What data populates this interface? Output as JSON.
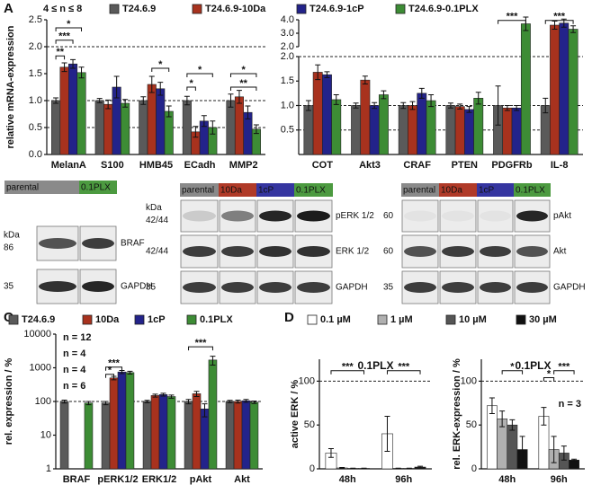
{
  "panel_labels": [
    "A",
    "B",
    "C",
    "D"
  ],
  "chart_data": [
    {
      "type": "bar",
      "subtitle": "4 ≤ n ≤ 8",
      "y_label": "relative mRNA-expression",
      "categories": [
        "MelanA",
        "S100",
        "HMB45",
        "ECadh",
        "MMP2"
      ],
      "series": [
        {
          "name": "T24.6.9",
          "color": "#5a5a5a",
          "values": [
            1.0,
            1.0,
            1.0,
            1.0,
            1.0
          ],
          "errors": [
            0.05,
            0.04,
            0.07,
            0.08,
            0.12
          ]
        },
        {
          "name": "T24.6.9-10Da",
          "color": "#a8321e",
          "values": [
            1.62,
            0.93,
            1.3,
            0.42,
            1.07
          ],
          "errors": [
            0.08,
            0.08,
            0.15,
            0.1,
            0.12
          ]
        },
        {
          "name": "T24.6.9-1cP",
          "color": "#23238a",
          "values": [
            1.68,
            1.25,
            1.22,
            0.62,
            0.78
          ],
          "errors": [
            0.08,
            0.2,
            0.12,
            0.1,
            0.12
          ]
        },
        {
          "name": "T24.6.9-0.1PLX",
          "color": "#3d8c35",
          "values": [
            1.52,
            0.95,
            0.8,
            0.5,
            0.47
          ],
          "errors": [
            0.1,
            0.07,
            0.1,
            0.12,
            0.08
          ]
        }
      ],
      "ylim": [
        0,
        2.5
      ],
      "yticks": [
        {
          "value": 0,
          "label": "0.0"
        },
        {
          "value": 0.5,
          "label": "0.5"
        },
        {
          "value": 1,
          "label": "1.0"
        },
        {
          "value": 1.5,
          "label": "1.5"
        },
        {
          "value": 2,
          "label": "2.0"
        },
        {
          "value": 2.5,
          "label": "2.5"
        }
      ],
      "reference_lines": [
        0.5,
        1,
        2
      ],
      "annotations": [
        "**",
        "***",
        "*",
        "*",
        "*",
        "*",
        "**",
        "*"
      ]
    },
    {
      "type": "bar",
      "categories": [
        "COT",
        "Akt3",
        "CRAF",
        "PTEN",
        "PDGFRb",
        "IL-8"
      ],
      "series": [
        {
          "color": "#5a5a5a",
          "values": [
            1.0,
            1.0,
            1.0,
            1.0,
            1.0,
            1.0
          ],
          "errors": [
            0.1,
            0.05,
            0.06,
            0.05,
            0.4,
            0.15
          ]
        },
        {
          "color": "#a8321e",
          "values": [
            1.68,
            1.52,
            1.0,
            0.98,
            0.95,
            3.6
          ],
          "errors": [
            0.15,
            0.08,
            0.08,
            0.05,
            0.05,
            0.3
          ]
        },
        {
          "color": "#23238a",
          "values": [
            1.63,
            1.0,
            1.25,
            0.92,
            0.95,
            3.75
          ],
          "errors": [
            0.06,
            0.06,
            0.1,
            0.06,
            0.05,
            0.3
          ]
        },
        {
          "color": "#3d8c35",
          "values": [
            1.12,
            1.22,
            1.1,
            1.15,
            3.7,
            3.3
          ],
          "errors": [
            0.1,
            0.08,
            0.12,
            0.12,
            0.5,
            0.25
          ]
        }
      ],
      "segments": [
        {
          "ylim": [
            0,
            2
          ],
          "yticks": [
            {
              "value": 0.5,
              "label": "0.5"
            },
            {
              "value": 1,
              "label": "1.0"
            },
            {
              "value": 1.5,
              "label": "1.5"
            },
            {
              "value": 2,
              "label": "2.0"
            }
          ]
        },
        {
          "ylim": [
            2,
            4
          ],
          "yticks": [
            {
              "value": 2,
              "label": "2.0"
            },
            {
              "value": 3,
              "label": "3.0"
            },
            {
              "value": 4,
              "label": "4.0"
            }
          ]
        }
      ],
      "reference_lines": [
        0.5,
        1,
        2
      ],
      "annotations": [
        "***",
        "***"
      ]
    },
    {
      "type": "bar",
      "log_scale": true,
      "y_label": "rel. expression / %",
      "categories": [
        "BRAF",
        "pERK1/2",
        "ERK1/2",
        "pAkt",
        "Akt"
      ],
      "series": [
        {
          "name": "T24.6.9",
          "n_label": "n = 12",
          "color": "#5a5a5a",
          "values": [
            100,
            90,
            100,
            100,
            100
          ],
          "errors": [
            10,
            10,
            8,
            15,
            8
          ]
        },
        {
          "name": "10Da",
          "n_label": "n = 4",
          "color": "#a8321e",
          "values": [
            null,
            500,
            150,
            170,
            100
          ],
          "errors": [
            null,
            60,
            15,
            30,
            10
          ]
        },
        {
          "name": "1cP",
          "n_label": "n = 4",
          "color": "#23238a",
          "values": [
            null,
            750,
            160,
            60,
            105
          ],
          "errors": [
            null,
            80,
            15,
            25,
            10
          ]
        },
        {
          "name": "0.1PLX",
          "n_label": "n = 6",
          "color": "#3d8c35",
          "values": [
            90,
            720,
            140,
            1700,
            95
          ],
          "errors": [
            10,
            70,
            15,
            500,
            8
          ]
        }
      ],
      "ylim": [
        1,
        10000
      ],
      "yticks": [
        1,
        10,
        100,
        1000,
        10000
      ],
      "reference_lines": [
        100
      ],
      "annotations": [
        "*",
        "***",
        "***"
      ]
    },
    {
      "type": "bar",
      "title": "0.1PLX",
      "title_color": "#3d8c35",
      "y_label": "active ERK / %",
      "categories": [
        "48h",
        "96h"
      ],
      "series": [
        {
          "name": "0.1 µM",
          "color": "#ffffff",
          "values": [
            18,
            40
          ],
          "errors": [
            5,
            20
          ]
        },
        {
          "name": "1 µM",
          "color": "#b0b0b0",
          "values": [
            1,
            0.5
          ],
          "errors": [
            0.5,
            0.3
          ]
        },
        {
          "name": "10 µM",
          "color": "#555555",
          "values": [
            0.5,
            0.5
          ],
          "errors": [
            0.3,
            0.3
          ]
        },
        {
          "name": "30 µM",
          "color": "#111111",
          "values": [
            0.5,
            2
          ],
          "errors": [
            0.3,
            1
          ]
        }
      ],
      "ylim": [
        0,
        125
      ],
      "yticks": [
        0,
        50,
        100
      ],
      "reference_lines": [
        100
      ],
      "annotations": [
        "***",
        "***"
      ]
    },
    {
      "type": "bar",
      "title": "0.1PLX",
      "title_color": "#3d8c35",
      "y_label": "rel. ERK-expression / %",
      "note": "n = 3",
      "categories": [
        "48h",
        "96h"
      ],
      "series": [
        {
          "color": "#ffffff",
          "values": [
            72,
            60
          ],
          "errors": [
            9,
            10
          ]
        },
        {
          "color": "#b0b0b0",
          "values": [
            57,
            22
          ],
          "errors": [
            9,
            15
          ]
        },
        {
          "color": "#555555",
          "values": [
            50,
            18
          ],
          "errors": [
            6,
            8
          ]
        },
        {
          "color": "#111111",
          "values": [
            22,
            10
          ],
          "errors": [
            15,
            1
          ]
        }
      ],
      "ylim": [
        0,
        125
      ],
      "yticks": [
        0,
        50,
        100
      ],
      "reference_lines": [
        100
      ],
      "annotations": [
        "*",
        "*",
        "***"
      ]
    }
  ],
  "blots": {
    "lane_colors": {
      "parental": "#8a8a8a",
      "10Da": "#b03a28",
      "1cP": "#3535a0",
      "0.1PLX": "#4c9a40"
    },
    "left": {
      "kda_header": "kDa",
      "lanes": [
        "parental",
        "0.1PLX"
      ],
      "rows": [
        {
          "kda": "86",
          "protein": "BRAF"
        },
        {
          "kda": "35",
          "protein": "GAPDH"
        }
      ]
    },
    "middle": {
      "kda_header": "kDa",
      "lanes": [
        "parental",
        "10Da",
        "1cP",
        "0.1PLX"
      ],
      "rows": [
        {
          "kda": "42/44",
          "protein": "pERK 1/2"
        },
        {
          "kda": "42/44",
          "protein": "ERK 1/2"
        },
        {
          "kda": "35",
          "protein": "GAPDH"
        }
      ]
    },
    "right": {
      "lanes": [
        "parental",
        "10Da",
        "1cP",
        "0.1PLX"
      ],
      "rows": [
        {
          "kda": "60",
          "protein": "pAkt"
        },
        {
          "kda": "60",
          "protein": "Akt"
        },
        {
          "kda": "35",
          "protein": "GAPDH"
        }
      ]
    }
  }
}
